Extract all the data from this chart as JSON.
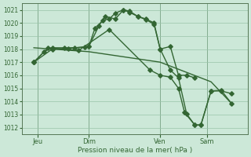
{
  "xlabel": "Pression niveau de la mer( hPa )",
  "bg_color": "#cce8d8",
  "grid_color": "#99c4aa",
  "line_color": "#336633",
  "ylim_min": 1011.5,
  "ylim_max": 1021.5,
  "xlim_min": -0.3,
  "xlim_max": 10.8,
  "yticks": [
    1012,
    1013,
    1014,
    1015,
    1016,
    1017,
    1018,
    1019,
    1020,
    1021
  ],
  "day_ticks": [
    0.5,
    3.0,
    6.5,
    8.8
  ],
  "day_labels": [
    "Jeu",
    "Dim",
    "Ven",
    "Sam"
  ],
  "day_vlines": [
    0.5,
    3.0,
    6.5,
    8.8
  ],
  "line_upper_x": [
    0.3,
    0.8,
    1.2,
    1.8,
    2.3,
    2.8,
    3.0,
    3.3,
    3.7,
    4.0,
    4.3,
    4.7,
    5.0,
    5.4,
    5.8,
    6.2,
    6.5,
    7.0,
    7.4,
    7.8,
    8.2
  ],
  "line_upper_y": [
    1017.0,
    1017.8,
    1018.1,
    1018.1,
    1018.1,
    1018.15,
    1018.2,
    1019.6,
    1020.2,
    1020.3,
    1020.75,
    1021.0,
    1020.8,
    1020.5,
    1020.25,
    1019.9,
    1018.0,
    1018.2,
    1016.0,
    1016.0,
    1015.8
  ],
  "line_mid_x": [
    0.3,
    1.2,
    2.0,
    3.0,
    3.5,
    3.8,
    4.3,
    4.7,
    5.0,
    5.4,
    5.8,
    6.2,
    6.5,
    7.0,
    7.4,
    7.8,
    8.2,
    8.5,
    9.0,
    9.5,
    10.0
  ],
  "line_mid_y": [
    1017.0,
    1018.0,
    1018.05,
    1018.2,
    1019.8,
    1020.5,
    1020.3,
    1021.0,
    1020.9,
    1020.5,
    1020.3,
    1020.0,
    1018.0,
    1016.4,
    1015.8,
    1013.05,
    1012.2,
    1012.2,
    1014.8,
    1014.8,
    1014.6
  ],
  "line_lower_x": [
    0.3,
    1.0,
    2.5,
    4.0,
    6.0,
    6.5,
    7.0,
    7.4,
    7.7,
    8.2,
    8.5,
    9.0,
    9.5,
    10.0
  ],
  "line_lower_y": [
    1017.0,
    1018.1,
    1017.9,
    1019.5,
    1016.4,
    1016.0,
    1015.85,
    1015.0,
    1013.15,
    1012.2,
    1012.2,
    1014.8,
    1014.85,
    1013.85
  ],
  "line_straight_x": [
    0.3,
    3.0,
    6.5,
    9.0,
    10.0
  ],
  "line_straight_y": [
    1018.1,
    1017.8,
    1017.0,
    1015.5,
    1013.85
  ]
}
